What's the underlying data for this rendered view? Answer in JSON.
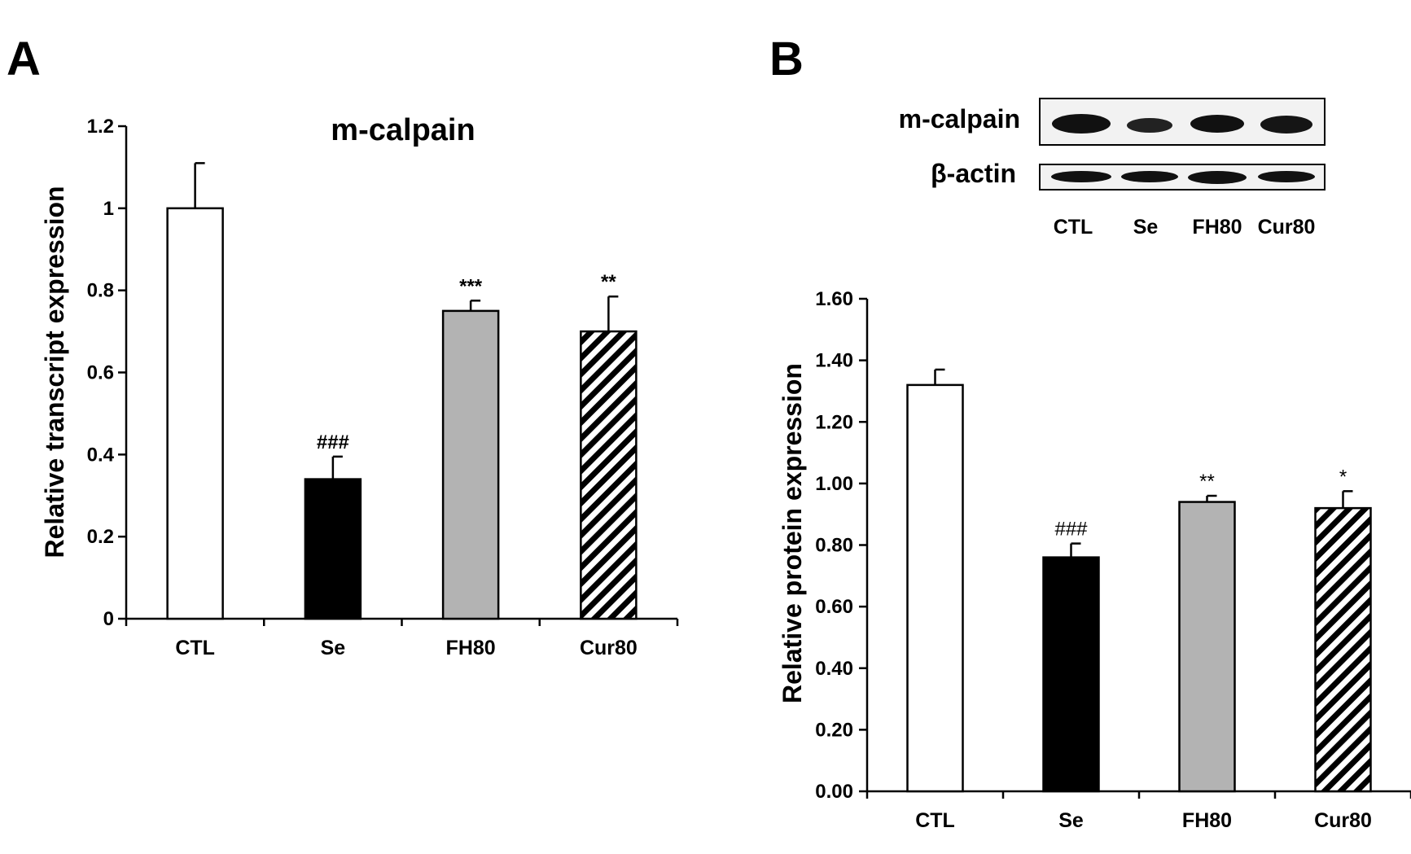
{
  "colors": {
    "CTL": "#ffffff",
    "Se": "#000000",
    "FH80": "#b3b3b3",
    "Cur80": "hatch",
    "outline": "#000000"
  },
  "panels": {
    "A": {
      "label": "A"
    },
    "B": {
      "label": "B"
    }
  },
  "blot": {
    "rows": [
      "m-calpain",
      "β-actin"
    ],
    "lanes": [
      "CTL",
      "Se",
      "FH80",
      "Cur80"
    ]
  },
  "chart_data": [
    {
      "panel": "A",
      "type": "bar",
      "title": "m-calpain",
      "xlabel": "",
      "ylabel": "Relative transcript expression",
      "categories": [
        "CTL",
        "Se",
        "FH80",
        "Cur80"
      ],
      "values": [
        1.0,
        0.34,
        0.75,
        0.7
      ],
      "errors": [
        0.11,
        0.055,
        0.025,
        0.085
      ],
      "significance": [
        "",
        "###",
        "***",
        "**"
      ],
      "ylim": [
        0,
        1.2
      ],
      "yticks": [
        0,
        0.2,
        0.4,
        0.6,
        0.8,
        1,
        1.2
      ],
      "ytick_labels": [
        "0",
        "0.2",
        "0.4",
        "0.6",
        "0.8",
        "1",
        "1.2"
      ],
      "grid": false,
      "legend": "none"
    },
    {
      "panel": "B",
      "type": "bar",
      "title": "",
      "xlabel": "",
      "ylabel": "Relative protein expression",
      "categories": [
        "CTL",
        "Se",
        "FH80",
        "Cur80"
      ],
      "values": [
        1.32,
        0.76,
        0.94,
        0.92
      ],
      "errors": [
        0.05,
        0.045,
        0.02,
        0.055
      ],
      "significance": [
        "",
        "###",
        "**",
        "*"
      ],
      "ylim": [
        0,
        1.6
      ],
      "yticks": [
        0,
        0.2,
        0.4,
        0.6,
        0.8,
        1.0,
        1.2,
        1.4,
        1.6
      ],
      "ytick_labels": [
        "0.00",
        "0.20",
        "0.40",
        "0.60",
        "0.80",
        "1.00",
        "1.20",
        "1.40",
        "1.60"
      ],
      "grid": false,
      "legend": "none"
    }
  ]
}
